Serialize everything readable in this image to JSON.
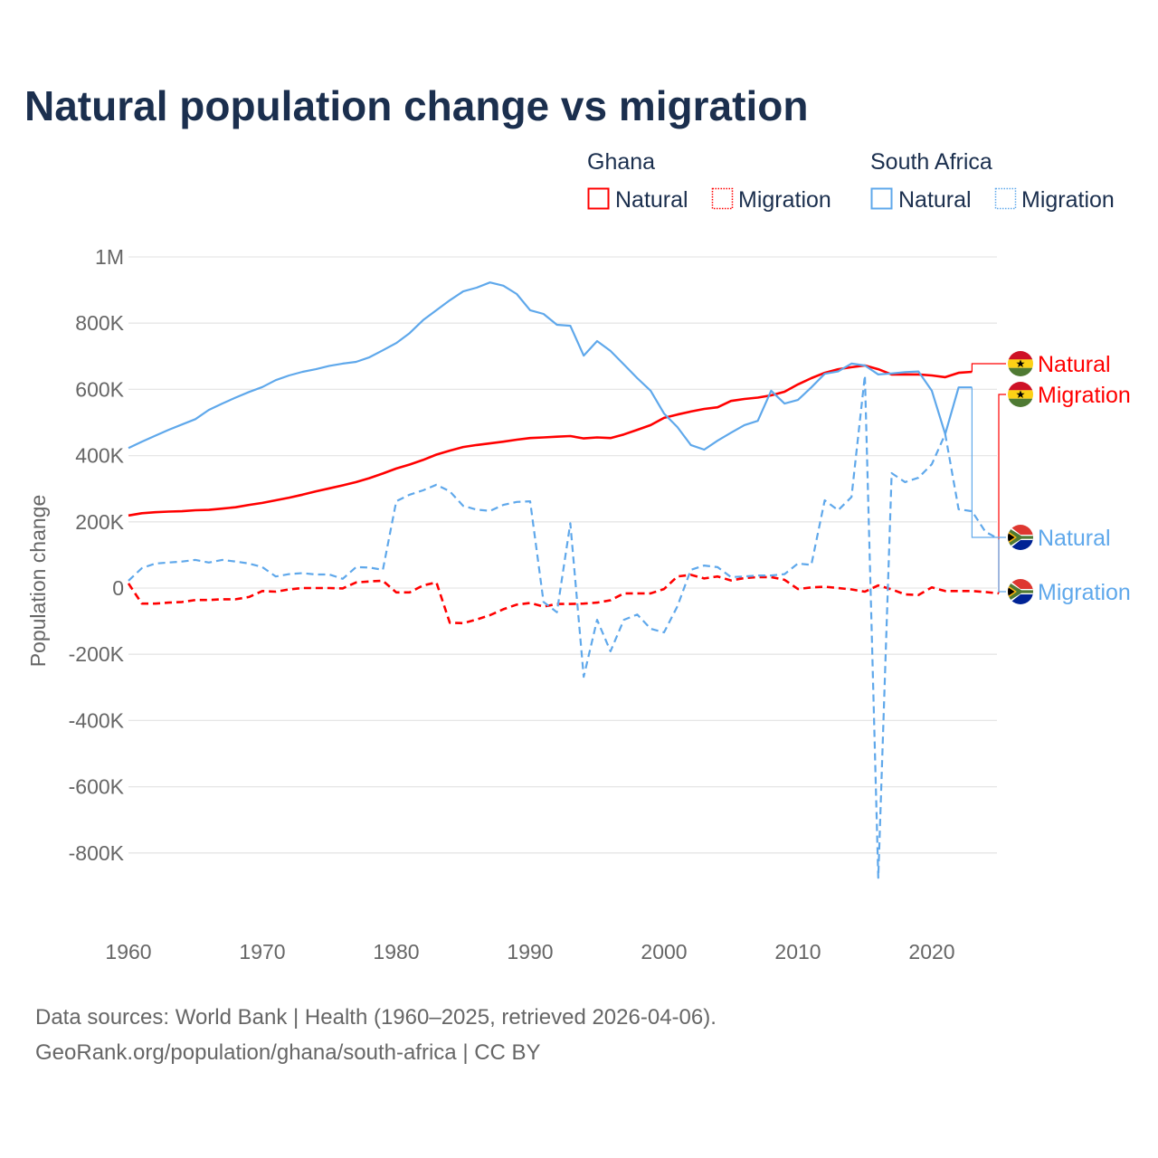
{
  "colors": {
    "ghana": "#ff0000",
    "south_africa": "#5fa8eb",
    "title": "#1b2f4e",
    "muted": "#666666"
  },
  "chart_data": {
    "type": "line",
    "title": "Natural population change vs migration",
    "xlabel": "",
    "ylabel": "Population change",
    "xlim": [
      1960,
      2025
    ],
    "ylim": [
      -1000000,
      1000000
    ],
    "x_ticks": [
      1960,
      1970,
      1980,
      1990,
      2000,
      2010,
      2020
    ],
    "x_tick_labels": [
      "1960",
      "1970",
      "1980",
      "1990",
      "2000",
      "2010",
      "2020"
    ],
    "y_ticks": [
      1000000,
      800000,
      600000,
      400000,
      200000,
      0,
      -200000,
      -400000,
      -600000,
      -800000
    ],
    "y_tick_labels": [
      "1M",
      "800K",
      "600K",
      "400K",
      "200K",
      "0",
      "-200K",
      "-400K",
      "-600K",
      "-800K"
    ],
    "grid": true,
    "legend": {
      "placement": "top-right",
      "groups": [
        {
          "name": "Ghana",
          "items": [
            "Natural",
            "Migration"
          ]
        },
        {
          "name": "South Africa",
          "items": [
            "Natural",
            "Migration"
          ]
        }
      ]
    },
    "series": [
      {
        "country": "Ghana",
        "name": "Natural",
        "label": "Natural",
        "style": "solid",
        "start_year": 1960,
        "values": [
          219000,
          226000,
          229000,
          231000,
          232000,
          235000,
          236000,
          240000,
          244000,
          251000,
          257000,
          265000,
          273000,
          282000,
          292000,
          301000,
          310000,
          320000,
          332000,
          346000,
          361000,
          373000,
          387000,
          403000,
          415000,
          426000,
          432000,
          437000,
          442000,
          448000,
          453000,
          455000,
          457000,
          459000,
          452000,
          455000,
          453000,
          464000,
          478000,
          492000,
          514000,
          524000,
          533000,
          541000,
          546000,
          565000,
          571000,
          575000,
          582000,
          593000,
          615000,
          634000,
          650000,
          661000,
          667000,
          672000,
          661000,
          645000,
          645000,
          645000,
          642000,
          637000,
          650000,
          653000
        ]
      },
      {
        "country": "Ghana",
        "name": "Migration",
        "label": "Migration",
        "style": "dashed",
        "start_year": 1960,
        "values": [
          14000,
          -47000,
          -47000,
          -44000,
          -42000,
          -36000,
          -36000,
          -34000,
          -34000,
          -27000,
          -9000,
          -11000,
          -4000,
          0,
          0,
          0,
          -1000,
          17000,
          20000,
          22000,
          -13000,
          -13000,
          8000,
          17000,
          -105000,
          -106000,
          -95000,
          -82000,
          -64000,
          -50000,
          -45000,
          -56000,
          -48000,
          -48000,
          -47000,
          -44000,
          -37000,
          -16000,
          -16000,
          -16000,
          -3000,
          35000,
          40000,
          29000,
          35000,
          23000,
          30000,
          33000,
          33000,
          25000,
          -3000,
          2000,
          4000,
          0,
          -4000,
          -11000,
          8000,
          -4000,
          -19000,
          -21000,
          2000,
          -9000,
          -9000,
          -9000,
          -12000,
          -16000
        ]
      },
      {
        "country": "South Africa",
        "name": "Natural",
        "label": "Natural",
        "style": "solid",
        "start_year": 1960,
        "values": [
          423000,
          442000,
          460000,
          478000,
          494000,
          510000,
          538000,
          557000,
          575000,
          592000,
          607000,
          628000,
          642000,
          653000,
          661000,
          671000,
          678000,
          683000,
          697000,
          718000,
          740000,
          770000,
          809000,
          839000,
          869000,
          896000,
          907000,
          923000,
          913000,
          888000,
          839000,
          828000,
          795000,
          792000,
          702000,
          746000,
          716000,
          675000,
          634000,
          596000,
          527000,
          486000,
          432000,
          418000,
          445000,
          469000,
          492000,
          505000,
          596000,
          557000,
          568000,
          606000,
          647000,
          654000,
          678000,
          672000,
          645000,
          648000,
          652000,
          654000,
          596000,
          465000,
          606000,
          606000
        ]
      },
      {
        "country": "South Africa",
        "name": "Migration",
        "label": "Migration",
        "style": "dashed",
        "start_year": 1960,
        "values": [
          22000,
          60000,
          74000,
          77000,
          80000,
          85000,
          77000,
          85000,
          80000,
          74000,
          63000,
          35000,
          42000,
          45000,
          41000,
          41000,
          28000,
          63000,
          62000,
          55000,
          262000,
          282000,
          295000,
          312000,
          292000,
          248000,
          237000,
          233000,
          251000,
          260000,
          262000,
          -42000,
          -73000,
          196000,
          -268000,
          -96000,
          -191000,
          -96000,
          -80000,
          -123000,
          -134000,
          -55000,
          55000,
          68000,
          63000,
          33000,
          35000,
          38000,
          38000,
          42000,
          74000,
          70000,
          265000,
          235000,
          275000,
          642000,
          -875000,
          347000,
          320000,
          333000,
          374000,
          465000,
          238000,
          232000,
          170000,
          148000
        ]
      }
    ]
  },
  "footer": {
    "line1": "Data sources: World Bank | Health (1960–2025, retrieved 2026-04-06).",
    "line2": "GeoRank.org/population/ghana/south-africa | CC BY"
  }
}
